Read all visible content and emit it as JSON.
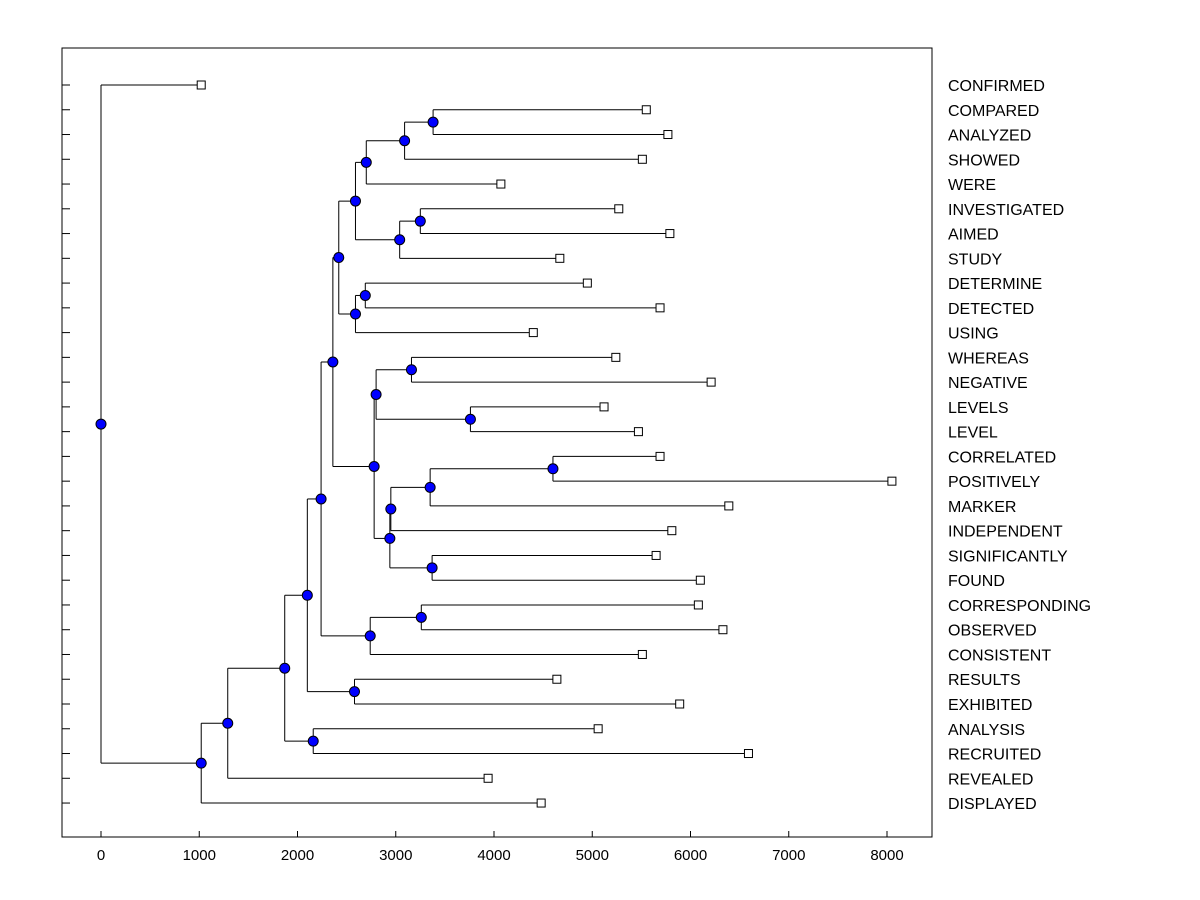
{
  "chart_data": {
    "type": "dendrogram",
    "title": "",
    "xlabel": "",
    "ylabel": "",
    "xlim": [
      -400,
      8450
    ],
    "x_ticks": [
      "0",
      "1000",
      "2000",
      "3000",
      "4000",
      "5000",
      "6000",
      "7000",
      "8000"
    ],
    "colors": {
      "node": "#0000ff",
      "line": "#000000",
      "leaf_fill": "#ffffff"
    },
    "leaves": [
      {
        "label": "CONFIRMED",
        "x": 1020
      },
      {
        "label": "COMPARED",
        "x": 5550
      },
      {
        "label": "ANALYZED",
        "x": 5770
      },
      {
        "label": "SHOWED",
        "x": 5510
      },
      {
        "label": "WERE",
        "x": 4070
      },
      {
        "label": "INVESTIGATED",
        "x": 5270
      },
      {
        "label": "AIMED",
        "x": 5790
      },
      {
        "label": "STUDY",
        "x": 4670
      },
      {
        "label": "DETERMINE",
        "x": 4950
      },
      {
        "label": "DETECTED",
        "x": 5690
      },
      {
        "label": "USING",
        "x": 4400
      },
      {
        "label": "WHEREAS",
        "x": 5240
      },
      {
        "label": "NEGATIVE",
        "x": 6210
      },
      {
        "label": "LEVELS",
        "x": 5120
      },
      {
        "label": "LEVEL",
        "x": 5470
      },
      {
        "label": "CORRELATED",
        "x": 5690
      },
      {
        "label": "POSITIVELY",
        "x": 8050
      },
      {
        "label": "MARKER",
        "x": 6390
      },
      {
        "label": "INDEPENDENT",
        "x": 5810
      },
      {
        "label": "SIGNIFICANTLY",
        "x": 5650
      },
      {
        "label": "FOUND",
        "x": 6100
      },
      {
        "label": "CORRESPONDING",
        "x": 6080
      },
      {
        "label": "OBSERVED",
        "x": 6330
      },
      {
        "label": "CONSISTENT",
        "x": 5510
      },
      {
        "label": "RESULTS",
        "x": 4640
      },
      {
        "label": "EXHIBITED",
        "x": 5890
      },
      {
        "label": "ANALYSIS",
        "x": 5060
      },
      {
        "label": "RECRUITED",
        "x": 6590
      },
      {
        "label": "REVEALED",
        "x": 3940
      },
      {
        "label": "DISPLAYED",
        "x": 4480
      }
    ],
    "merges": [
      {
        "id": "n1",
        "children": [
          "COMPARED",
          "ANALYZED"
        ],
        "x": 3380
      },
      {
        "id": "n2",
        "children": [
          "n1",
          "SHOWED"
        ],
        "x": 3090
      },
      {
        "id": "n3",
        "children": [
          "n2",
          "WERE"
        ],
        "x": 2700
      },
      {
        "id": "n4",
        "children": [
          "INVESTIGATED",
          "AIMED"
        ],
        "x": 3250
      },
      {
        "id": "n5",
        "children": [
          "n4",
          "STUDY"
        ],
        "x": 3040
      },
      {
        "id": "n6",
        "children": [
          "n3",
          "n5"
        ],
        "x": 2590
      },
      {
        "id": "n7",
        "children": [
          "DETERMINE",
          "DETECTED"
        ],
        "x": 2690
      },
      {
        "id": "n8",
        "children": [
          "n7",
          "USING"
        ],
        "x": 2590
      },
      {
        "id": "n9",
        "children": [
          "n6",
          "n8"
        ],
        "x": 2420
      },
      {
        "id": "n10",
        "children": [
          "WHEREAS",
          "NEGATIVE"
        ],
        "x": 3160
      },
      {
        "id": "n11",
        "children": [
          "LEVELS",
          "LEVEL"
        ],
        "x": 3760
      },
      {
        "id": "n12",
        "children": [
          "n10",
          "n11"
        ],
        "x": 2800
      },
      {
        "id": "n13",
        "children": [
          "CORRELATED",
          "POSITIVELY"
        ],
        "x": 4600
      },
      {
        "id": "n14",
        "children": [
          "n13",
          "MARKER"
        ],
        "x": 3350
      },
      {
        "id": "n15",
        "children": [
          "n14",
          "INDEPENDENT"
        ],
        "x": 2950
      },
      {
        "id": "n16",
        "children": [
          "SIGNIFICANTLY",
          "FOUND"
        ],
        "x": 3370
      },
      {
        "id": "n17",
        "children": [
          "n15",
          "n16"
        ],
        "x": 2940
      },
      {
        "id": "n18",
        "children": [
          "n12",
          "n17"
        ],
        "x": 2780
      },
      {
        "id": "n19",
        "children": [
          "n9",
          "n18"
        ],
        "x": 2360
      },
      {
        "id": "n20",
        "children": [
          "CORRESPONDING",
          "OBSERVED"
        ],
        "x": 3260
      },
      {
        "id": "n21",
        "children": [
          "n20",
          "CONSISTENT"
        ],
        "x": 2740
      },
      {
        "id": "n22",
        "children": [
          "n19",
          "n21"
        ],
        "x": 2240
      },
      {
        "id": "n23",
        "children": [
          "RESULTS",
          "EXHIBITED"
        ],
        "x": 2580
      },
      {
        "id": "n24",
        "children": [
          "n22",
          "n23"
        ],
        "x": 2100
      },
      {
        "id": "n25",
        "children": [
          "ANALYSIS",
          "RECRUITED"
        ],
        "x": 2160
      },
      {
        "id": "n26",
        "children": [
          "n24",
          "n25"
        ],
        "x": 1870
      },
      {
        "id": "n27",
        "children": [
          "n26",
          "REVEALED"
        ],
        "x": 1290
      },
      {
        "id": "n28",
        "children": [
          "n27",
          "DISPLAYED"
        ],
        "x": 1020
      },
      {
        "id": "n29",
        "children": [
          "CONFIRMED",
          "n28"
        ],
        "x": 0
      }
    ]
  }
}
